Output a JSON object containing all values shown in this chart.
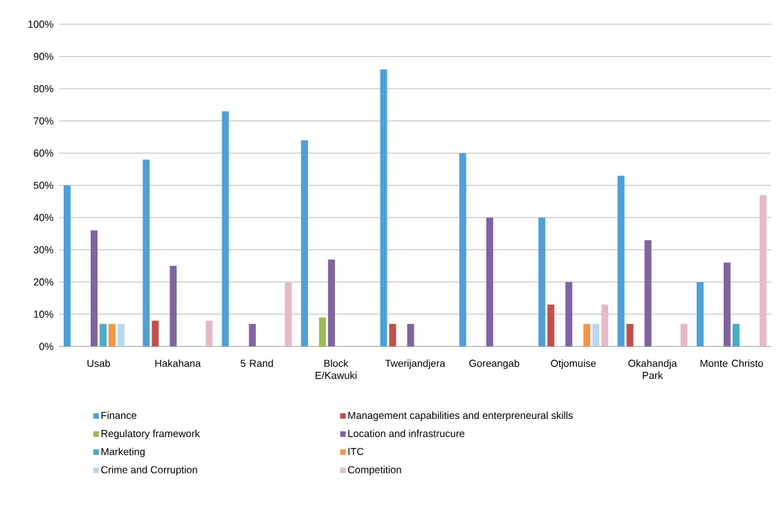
{
  "chart_data": {
    "type": "bar",
    "categories": [
      "Usab",
      "Hakahana",
      "5 Rand",
      "Block E/Kawuki",
      "Twerijandjera",
      "Goreangab",
      "Otjomuise",
      "Okahandja Park",
      "Monte Christo"
    ],
    "series": [
      {
        "name": "Finance",
        "color": "#4f9fd8",
        "values": [
          50,
          58,
          73,
          64,
          86,
          60,
          40,
          53,
          20
        ]
      },
      {
        "name": "Management capabilities and enterpreneural skills",
        "color": "#c0504d",
        "values": [
          0,
          8,
          0,
          0,
          7,
          0,
          13,
          7,
          0
        ]
      },
      {
        "name": "Regulatory framework",
        "color": "#9bbb59",
        "values": [
          0,
          0,
          0,
          9,
          0,
          0,
          0,
          0,
          0
        ]
      },
      {
        "name": "Location and infrastrucure",
        "color": "#8064a2",
        "values": [
          36,
          25,
          7,
          27,
          7,
          40,
          20,
          33,
          26
        ]
      },
      {
        "name": "Marketing",
        "color": "#4bacc6",
        "values": [
          7,
          0,
          0,
          0,
          0,
          0,
          0,
          0,
          7
        ]
      },
      {
        "name": "ITC",
        "color": "#f79646",
        "values": [
          7,
          0,
          0,
          0,
          0,
          0,
          7,
          0,
          0
        ]
      },
      {
        "name": "Crime and Corruption",
        "color": "#b9d7f2",
        "values": [
          7,
          0,
          0,
          0,
          0,
          0,
          7,
          0,
          0
        ]
      },
      {
        "name": "Competition",
        "color": "#e6b9c8",
        "values": [
          0,
          8,
          20,
          0,
          0,
          0,
          13,
          7,
          47
        ]
      }
    ],
    "ylim": [
      0,
      100
    ],
    "yticks": [
      {
        "value": 0,
        "label": "0%"
      },
      {
        "value": 10,
        "label": "10%"
      },
      {
        "value": 20,
        "label": "20%"
      },
      {
        "value": 30,
        "label": "30%"
      },
      {
        "value": 40,
        "label": "40%"
      },
      {
        "value": 50,
        "label": "50%"
      },
      {
        "value": 60,
        "label": "60%"
      },
      {
        "value": 70,
        "label": "70%"
      },
      {
        "value": 80,
        "label": "80%"
      },
      {
        "value": 90,
        "label": "90%"
      },
      {
        "value": 100,
        "label": "100%"
      }
    ],
    "grid": "y",
    "legend": "bottom"
  }
}
